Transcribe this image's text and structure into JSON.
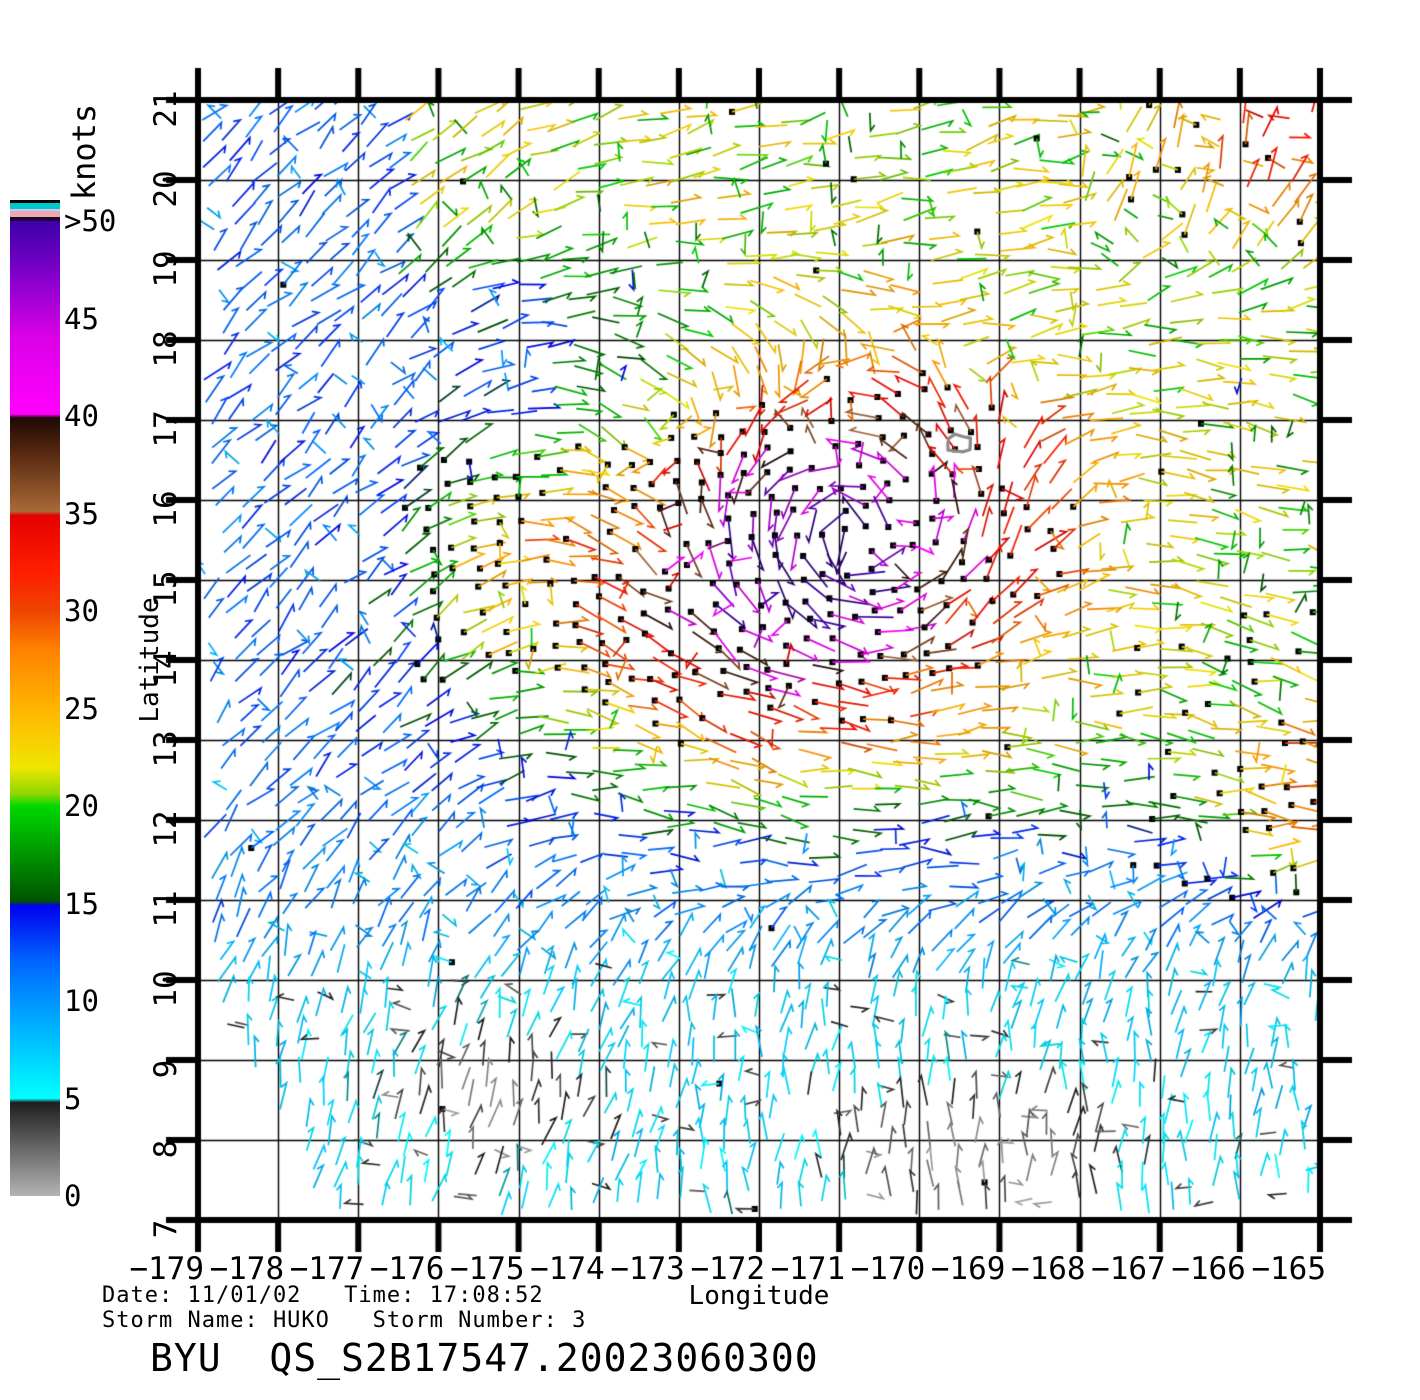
{
  "figure": {
    "title": "BYU  QS_S2B17547.20023060300",
    "date_time_line": "Date: 11/01/02   Time: 17:08:52",
    "storm_line": "Storm Name: HUKO   Storm Number: 3"
  },
  "chart_data": {
    "type": "scatter",
    "variant": "scatterometer-wind-vector-field",
    "title": "BYU  QS_S2B17547.20023060300",
    "xlabel": "Longitude",
    "ylabel": "Latitude",
    "xlim": [
      -179,
      -165
    ],
    "ylim": [
      7,
      21
    ],
    "grid": true,
    "x_ticks": {
      "values": [
        -179,
        -178,
        -177,
        -176,
        -175,
        -174,
        -173,
        -172,
        -171,
        -170,
        -169,
        -168,
        -167,
        -166,
        -165
      ],
      "labels": [
        "−179",
        "−178",
        "−177",
        "−176",
        "−175",
        "−174",
        "−173",
        "−172",
        "−171",
        "−170",
        "−169",
        "−168",
        "−167",
        "−166",
        "−165"
      ]
    },
    "y_ticks": {
      "values": [
        7,
        8,
        9,
        10,
        11,
        12,
        13,
        14,
        15,
        16,
        17,
        18,
        19,
        20,
        21
      ],
      "labels": [
        "7",
        "8",
        "9",
        "10",
        "11",
        "12",
        "13",
        "14",
        "15",
        "16",
        "17",
        "18",
        "19",
        "20",
        "21"
      ]
    },
    "annotations": {
      "date": "11/01/02",
      "time": "17:08:52",
      "storm_name": "HUKO",
      "storm_number": "3",
      "storm_center_marker": {
        "lon": -169.5,
        "lat": 16.7
      }
    },
    "colorbar": {
      "label": "knots",
      "tick_values": [
        0,
        5,
        10,
        15,
        20,
        25,
        30,
        35,
        40,
        45,
        50
      ],
      "tick_labels": [
        "0",
        "5",
        "10",
        "15",
        "20",
        "25",
        "30",
        "35",
        "40",
        "45",
        ">50"
      ],
      "top_stripes": [
        {
          "c": "#000000",
          "h": 3
        },
        {
          "c": "#00c8c8",
          "h": 6
        },
        {
          "c": "#c8c8ff",
          "h": 2
        },
        {
          "c": "#eeaaaa",
          "h": 6
        },
        {
          "c": "#1e0533",
          "h": 4
        }
      ],
      "gradient_stops": [
        {
          "v": 0,
          "c": "#b4b4b4"
        },
        {
          "v": 4.8,
          "c": "#1e1e1e"
        },
        {
          "v": 5,
          "c": "#00ffff"
        },
        {
          "v": 9,
          "c": "#00aaff"
        },
        {
          "v": 12,
          "c": "#0066ff"
        },
        {
          "v": 14.9,
          "c": "#0000f0"
        },
        {
          "v": 15.1,
          "c": "#005200"
        },
        {
          "v": 20,
          "c": "#00d800"
        },
        {
          "v": 20.6,
          "c": "#8cd800"
        },
        {
          "v": 22,
          "c": "#f0e600"
        },
        {
          "v": 25,
          "c": "#ffb400"
        },
        {
          "v": 28,
          "c": "#ff8200"
        },
        {
          "v": 30,
          "c": "#ee4400"
        },
        {
          "v": 32,
          "c": "#ff1e00"
        },
        {
          "v": 34.9,
          "c": "#e60000"
        },
        {
          "v": 35.1,
          "c": "#a86a38"
        },
        {
          "v": 38,
          "c": "#5a2a12"
        },
        {
          "v": 39.9,
          "c": "#1e0a04"
        },
        {
          "v": 40.1,
          "c": "#ff00ff"
        },
        {
          "v": 44,
          "c": "#dc00e6"
        },
        {
          "v": 47,
          "c": "#8800cc"
        },
        {
          "v": 50,
          "c": "#3c00aa"
        },
        {
          "v": 53,
          "c": "#28006e"
        }
      ]
    },
    "render_params": {
      "seed": 7,
      "eye": {
        "lon": -170.8,
        "lat": 15.6
      },
      "bump": {
        "lon": -171.5,
        "lat": 15.3,
        "amp": 31,
        "su": 3.0,
        "sv": 2.0,
        "rot_deg": 15
      },
      "sub_bumps": [
        {
          "lon": -165.3,
          "lat": 20.7,
          "amp": 13,
          "sx": 1.7,
          "sy": 1.2
        },
        {
          "lon": -165.4,
          "lat": 12.1,
          "amp": 13,
          "sx": 1.0,
          "sy": 1.1
        },
        {
          "lon": -175.3,
          "lat": 15.2,
          "amp": 8,
          "sx": 1.0,
          "sy": 1.5
        }
      ],
      "calm_pockets": [
        {
          "lon": -175.4,
          "lat": 8.4,
          "amp": 5.5,
          "sx": 1.25,
          "sy": 0.85
        },
        {
          "lon": -169.2,
          "lat": 7.7,
          "amp": 6.0,
          "sx": 2.0,
          "sy": 0.95
        }
      ],
      "nodata_edge": {
        "lat0": 10.1,
        "slope": 1.9
      },
      "cell": {
        "du": 23,
        "dw": 21.5,
        "tilt_deg": -6
      }
    }
  }
}
